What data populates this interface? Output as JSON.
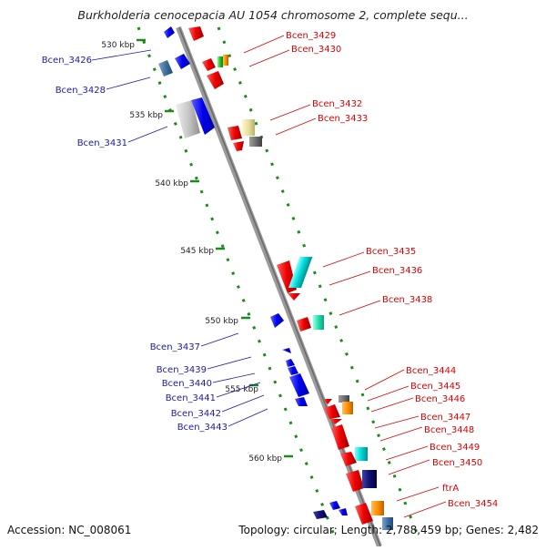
{
  "title": "Burkholderia cenocepacia AU 1054 chromosome 2, complete sequ...",
  "footer": {
    "accession": "Accession: NC_008061",
    "summary": "Topology: circular; Length: 2,788,459 bp; Genes: 2,482"
  },
  "colors": {
    "backbone": "#8c8c8c",
    "left_label": "#1a1aa6",
    "right_label": "#dd0000",
    "tick": "#1a8c1a"
  },
  "scale_ticks": [
    "530 kbp",
    "535 kbp",
    "540 kbp",
    "545 kbp",
    "550 kbp",
    "555 kbp",
    "560 kbp"
  ],
  "left_genes": [
    "Bcen_3426",
    "Bcen_3428",
    "Bcen_3431",
    "Bcen_3437",
    "Bcen_3439",
    "Bcen_3440",
    "Bcen_3441",
    "Bcen_3442",
    "Bcen_3443"
  ],
  "right_genes": [
    "Bcen_3429",
    "Bcen_3430",
    "Bcen_3432",
    "Bcen_3433",
    "Bcen_3435",
    "Bcen_3436",
    "Bcen_3438",
    "Bcen_3444",
    "Bcen_3445",
    "Bcen_3446",
    "Bcen_3447",
    "Bcen_3448",
    "Bcen_3449",
    "Bcen_3450",
    "ftrA",
    "Bcen_3454"
  ]
}
